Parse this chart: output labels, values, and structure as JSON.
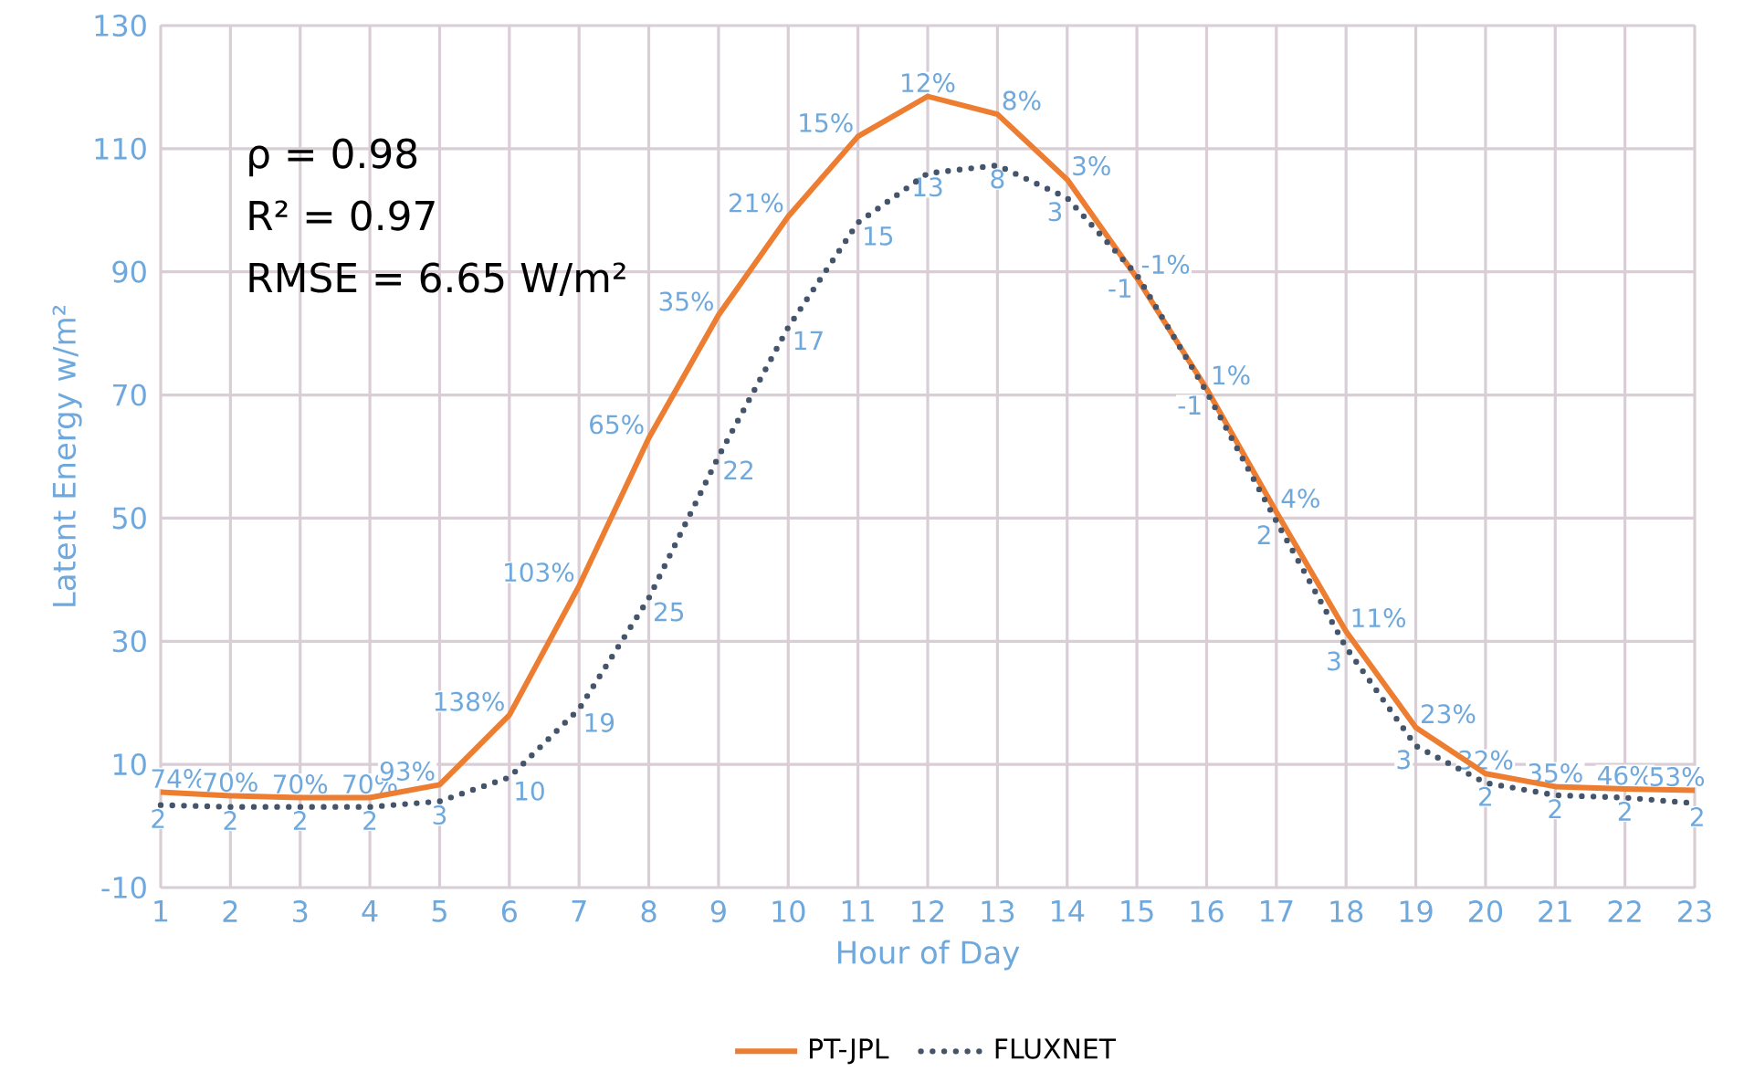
{
  "chart_data": {
    "type": "line",
    "xlabel": "Hour of Day",
    "ylabel": "Latent Energy w/m²",
    "x": [
      1,
      2,
      3,
      4,
      5,
      6,
      7,
      8,
      9,
      10,
      11,
      12,
      13,
      14,
      15,
      16,
      17,
      18,
      19,
      20,
      21,
      22,
      23
    ],
    "xlim": [
      1,
      23
    ],
    "xticks": [
      1,
      2,
      3,
      4,
      5,
      6,
      7,
      8,
      9,
      10,
      11,
      12,
      13,
      14,
      15,
      16,
      17,
      18,
      19,
      20,
      21,
      22,
      23
    ],
    "ylim": [
      -10,
      130
    ],
    "yticks": [
      -10,
      10,
      30,
      50,
      70,
      90,
      110,
      130
    ],
    "grid": true,
    "legend": "bottom",
    "marker": "none",
    "series": [
      {
        "name": "PT-JPL",
        "color": "#ed7d31",
        "line_style": "solid",
        "values": [
          5.5,
          4.9,
          4.6,
          4.6,
          6.7,
          18,
          39,
          63,
          83,
          99,
          112,
          118.5,
          115.6,
          105,
          89,
          71,
          51,
          31.6,
          16,
          8.5,
          6.4,
          6,
          5.8
        ]
      },
      {
        "name": "FLUXNET",
        "color": "#44546a",
        "line_style": "dotted",
        "values": [
          3.4,
          3.1,
          3.1,
          3.1,
          4,
          7.9,
          19,
          37,
          60,
          81,
          98,
          106,
          107.3,
          102,
          89.5,
          70.5,
          49.5,
          29,
          13,
          7,
          5,
          4.6,
          3.7
        ]
      }
    ],
    "annotations": [
      "ρ = 0.98",
      "R² = 0.97",
      "RMSE = 6.65 W/m²",
      {
        "text": "74%",
        "x": 1,
        "y": 5.5
      },
      {
        "text": "70%",
        "x": 2,
        "y": 4.9
      },
      {
        "text": "70%",
        "x": 3,
        "y": 4.6
      },
      {
        "text": "70%",
        "x": 4,
        "y": 4.6
      },
      {
        "text": "93%",
        "x": 5,
        "y": 6.7
      },
      {
        "text": "138%",
        "x": 6,
        "y": 18
      },
      {
        "text": "103%",
        "x": 7,
        "y": 39
      },
      {
        "text": "65%",
        "x": 8,
        "y": 63
      },
      {
        "text": "35%",
        "x": 9,
        "y": 83
      },
      {
        "text": "21%",
        "x": 10,
        "y": 99
      },
      {
        "text": "15%",
        "x": 11,
        "y": 112
      },
      {
        "text": "12%",
        "x": 12,
        "y": 118.5
      },
      {
        "text": "8%",
        "x": 13,
        "y": 115.6
      },
      {
        "text": "3%",
        "x": 14,
        "y": 105
      },
      {
        "text": "-1%",
        "x": 15,
        "y": 89
      },
      {
        "text": "1%",
        "x": 16,
        "y": 71
      },
      {
        "text": "4%",
        "x": 17,
        "y": 51
      },
      {
        "text": "11%",
        "x": 18,
        "y": 31.6
      },
      {
        "text": "23%",
        "x": 19,
        "y": 16
      },
      {
        "text": "32%",
        "x": 20,
        "y": 8.5
      },
      {
        "text": "35%",
        "x": 21,
        "y": 6.4
      },
      {
        "text": "46%",
        "x": 22,
        "y": 6
      },
      {
        "text": "53%",
        "x": 23,
        "y": 5.8
      },
      {
        "text": "2",
        "x": 1,
        "y": 3.4
      },
      {
        "text": "2",
        "x": 2,
        "y": 3.1
      },
      {
        "text": "2",
        "x": 3,
        "y": 3.1
      },
      {
        "text": "2",
        "x": 4,
        "y": 3.1
      },
      {
        "text": "3",
        "x": 5,
        "y": 4
      },
      {
        "text": "10",
        "x": 6,
        "y": 7.9
      },
      {
        "text": "19",
        "x": 7,
        "y": 19
      },
      {
        "text": "25",
        "x": 8,
        "y": 37
      },
      {
        "text": "22",
        "x": 9,
        "y": 60
      },
      {
        "text": "17",
        "x": 10,
        "y": 81
      },
      {
        "text": "15",
        "x": 11,
        "y": 98
      },
      {
        "text": "13",
        "x": 12,
        "y": 106
      },
      {
        "text": "8",
        "x": 13,
        "y": 107.3
      },
      {
        "text": "3",
        "x": 14,
        "y": 102
      },
      {
        "text": "-1",
        "x": 15,
        "y": 89.5
      },
      {
        "text": "-1",
        "x": 16,
        "y": 70.5
      },
      {
        "text": "2",
        "x": 17,
        "y": 49.5
      },
      {
        "text": "3",
        "x": 18,
        "y": 29
      },
      {
        "text": "3",
        "x": 19,
        "y": 13
      },
      {
        "text": "2",
        "x": 20,
        "y": 7
      },
      {
        "text": "2",
        "x": 21,
        "y": 5
      },
      {
        "text": "2",
        "x": 22,
        "y": 4.6
      },
      {
        "text": "2",
        "x": 23,
        "y": 3.7
      }
    ]
  }
}
